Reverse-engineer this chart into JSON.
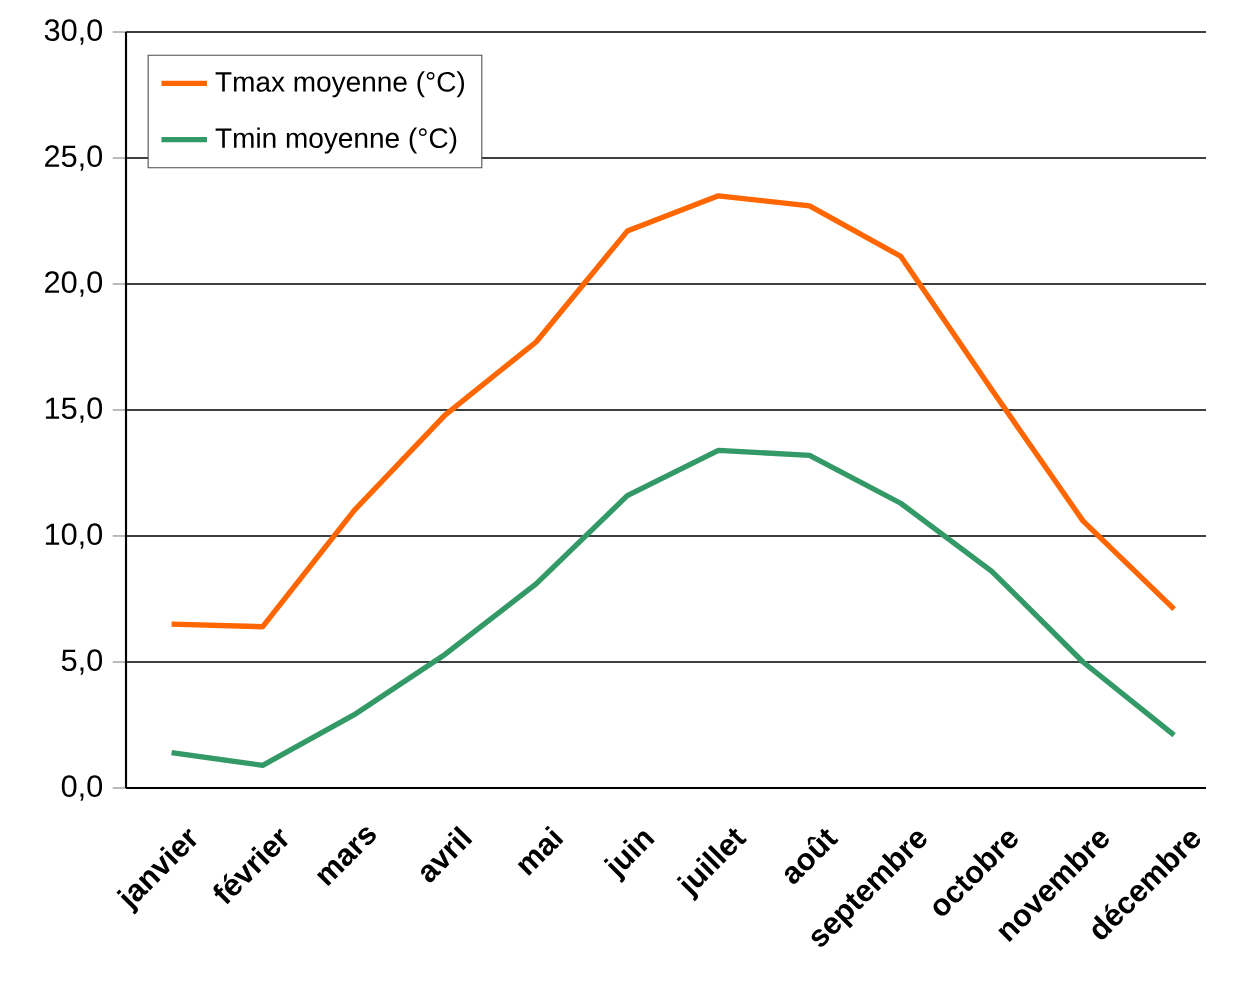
{
  "chart_data": {
    "type": "line",
    "categories": [
      "janvier",
      "février",
      "mars",
      "avril",
      "mai",
      "juin",
      "juillet",
      "août",
      "septembre",
      "octobre",
      "novembre",
      "décembre"
    ],
    "series": [
      {
        "name": "Tmax moyenne (°C)",
        "color": "#ff6600",
        "values": [
          6.5,
          6.4,
          11.0,
          14.8,
          17.7,
          22.1,
          23.5,
          23.1,
          21.1,
          15.8,
          10.6,
          7.1
        ]
      },
      {
        "name": "Tmin moyenne (°C)",
        "color": "#339966",
        "values": [
          1.4,
          0.9,
          2.9,
          5.3,
          8.1,
          11.6,
          13.4,
          13.2,
          11.3,
          8.6,
          5.0,
          2.1
        ]
      }
    ],
    "ylim": [
      0,
      30
    ],
    "yticks": [
      {
        "value": 0,
        "label": "0,0"
      },
      {
        "value": 5,
        "label": "5,0"
      },
      {
        "value": 10,
        "label": "10,0"
      },
      {
        "value": 15,
        "label": "15,0"
      },
      {
        "value": 20,
        "label": "20,0"
      },
      {
        "value": 25,
        "label": "25,0"
      },
      {
        "value": 30,
        "label": "30,0"
      }
    ],
    "grid": "y",
    "legend": "top left",
    "marker": "none",
    "line_style": "solid"
  }
}
